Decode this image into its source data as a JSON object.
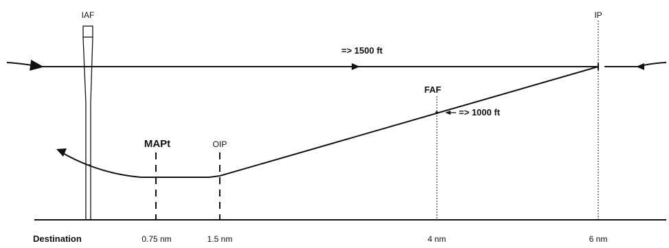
{
  "fixes": {
    "iaf": "IAF",
    "ip": "IP",
    "faf": "FAF",
    "mapt": "MAPt",
    "oip": "OIP"
  },
  "altitudes": {
    "high": "=> 1500 ft",
    "faf": "=> 1000 ft"
  },
  "distances": {
    "destination": "Destination",
    "d075": "0.75 nm",
    "d15": "1.5 nm",
    "d4": "4 nm",
    "d6": "6 nm"
  },
  "colors": {
    "ink": "#111111",
    "background": "#ffffff"
  }
}
